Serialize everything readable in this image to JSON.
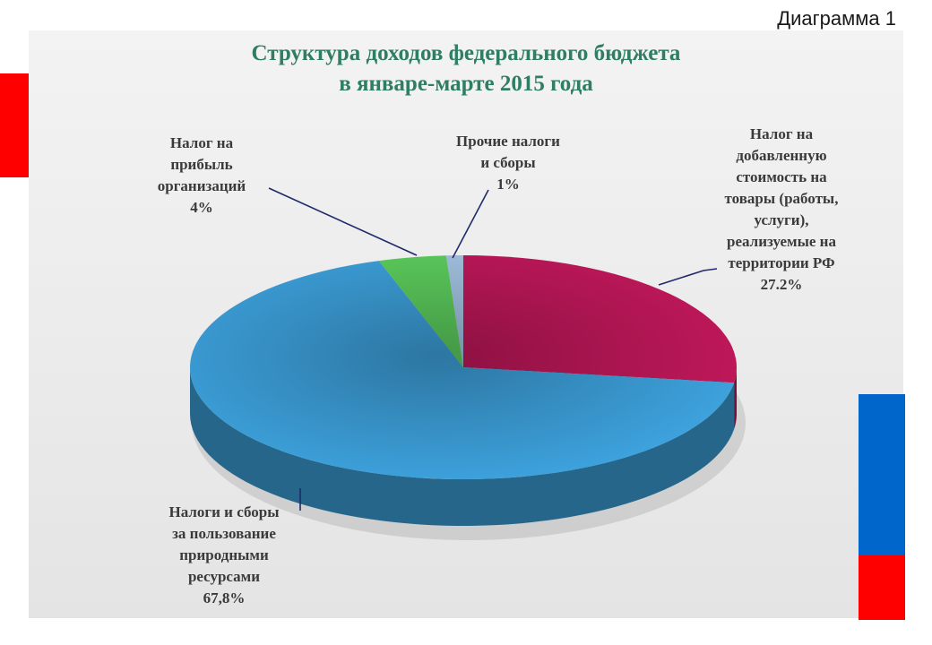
{
  "header": {
    "caption": "Диаграмма 1"
  },
  "chart_data": {
    "type": "pie",
    "title": [
      "Структура доходов федерального бюджета",
      "в январе-марте 2015 года"
    ],
    "slices": [
      {
        "label": [
          "Налог на",
          "добавленную",
          "стоимость на",
          "товары (работы,",
          "услуги),",
          "реализуемые на",
          "территории РФ"
        ],
        "value": 27.2,
        "value_label": "27.2%",
        "color": "#c2185b"
      },
      {
        "label": [
          "Налоги и сборы",
          "за пользование",
          "природными",
          "ресурсами"
        ],
        "value": 67.8,
        "value_label": "67,8%",
        "color": "#3ea4e0"
      },
      {
        "label": [
          "Налог на",
          "прибыль",
          "организаций"
        ],
        "value": 4,
        "value_label": "4%",
        "color": "#5fd35f"
      },
      {
        "label": [
          "Прочие налоги",
          "и сборы"
        ],
        "value": 1,
        "value_label": "1%",
        "color": "#a8c8e8"
      }
    ]
  },
  "colors": {
    "title": "#2f7d63",
    "flag_red": "#ff0000",
    "flag_blue": "#0066cc"
  }
}
